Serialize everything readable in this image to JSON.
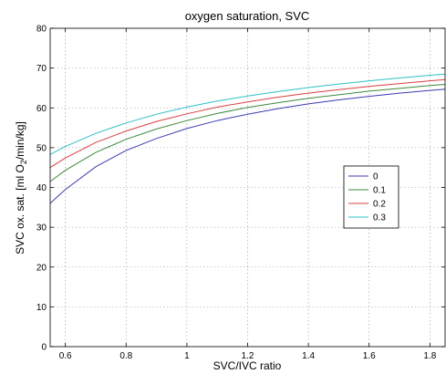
{
  "chart_data": {
    "type": "line",
    "title": "oxygen saturation, SVC",
    "xlabel": "SVC/IVC ratio",
    "ylabel_parts": [
      "SVC ox. sat. [ml O",
      "2",
      "/min/kg]"
    ],
    "xlim": [
      0.55,
      1.85
    ],
    "ylim": [
      0,
      80
    ],
    "xticks": [
      0.6,
      0.8,
      1,
      1.2,
      1.4,
      1.6,
      1.8
    ],
    "xtick_labels": [
      "0.6",
      "0.8",
      "1",
      "1.2",
      "1.4",
      "1.6",
      "1.8"
    ],
    "yticks": [
      0,
      10,
      20,
      30,
      40,
      50,
      60,
      70,
      80
    ],
    "ytick_labels": [
      "0",
      "10",
      "20",
      "30",
      "40",
      "50",
      "60",
      "70",
      "80"
    ],
    "grid": true,
    "legend_position": "right-middle",
    "series": [
      {
        "name": "0",
        "color": "#3b3bb0",
        "x": [
          0.55,
          0.6,
          0.7,
          0.8,
          0.9,
          1.0,
          1.1,
          1.2,
          1.3,
          1.4,
          1.5,
          1.6,
          1.7,
          1.8,
          1.85
        ],
        "y": [
          36.0,
          39.5,
          45.2,
          49.3,
          52.3,
          54.8,
          56.8,
          58.4,
          59.8,
          61.0,
          62.0,
          62.9,
          63.7,
          64.4,
          64.7
        ]
      },
      {
        "name": "0.1",
        "color": "#3a8a3a",
        "x": [
          0.55,
          0.6,
          0.7,
          0.8,
          0.9,
          1.0,
          1.1,
          1.2,
          1.3,
          1.4,
          1.5,
          1.6,
          1.7,
          1.8,
          1.85
        ],
        "y": [
          41.5,
          44.3,
          48.8,
          52.1,
          54.7,
          56.8,
          58.6,
          60.1,
          61.3,
          62.4,
          63.3,
          64.2,
          64.9,
          65.6,
          65.9
        ]
      },
      {
        "name": "0.2",
        "color": "#d94040",
        "x": [
          0.55,
          0.6,
          0.7,
          0.8,
          0.9,
          1.0,
          1.1,
          1.2,
          1.3,
          1.4,
          1.5,
          1.6,
          1.7,
          1.8,
          1.85
        ],
        "y": [
          45.0,
          47.4,
          51.3,
          54.2,
          56.6,
          58.5,
          60.2,
          61.5,
          62.7,
          63.7,
          64.6,
          65.4,
          66.1,
          66.8,
          67.1
        ]
      },
      {
        "name": "0.3",
        "color": "#2ec0c8",
        "x": [
          0.55,
          0.6,
          0.7,
          0.8,
          0.9,
          1.0,
          1.1,
          1.2,
          1.3,
          1.4,
          1.5,
          1.6,
          1.7,
          1.8,
          1.85
        ],
        "y": [
          48.3,
          50.3,
          53.6,
          56.2,
          58.4,
          60.2,
          61.7,
          63.0,
          64.1,
          65.1,
          66.0,
          66.8,
          67.5,
          68.2,
          68.5
        ]
      }
    ]
  }
}
